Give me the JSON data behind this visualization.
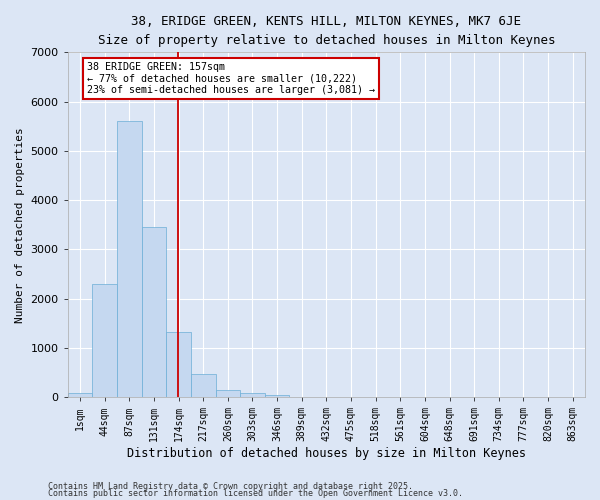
{
  "title_line1": "38, ERIDGE GREEN, KENTS HILL, MILTON KEYNES, MK7 6JE",
  "title_line2": "Size of property relative to detached houses in Milton Keynes",
  "xlabel": "Distribution of detached houses by size in Milton Keynes",
  "ylabel": "Number of detached properties",
  "bar_labels": [
    "1sqm",
    "44sqm",
    "87sqm",
    "131sqm",
    "174sqm",
    "217sqm",
    "260sqm",
    "303sqm",
    "346sqm",
    "389sqm",
    "432sqm",
    "475sqm",
    "518sqm",
    "561sqm",
    "604sqm",
    "648sqm",
    "691sqm",
    "734sqm",
    "777sqm",
    "820sqm",
    "863sqm"
  ],
  "bar_values": [
    75,
    2300,
    5600,
    3450,
    1320,
    470,
    155,
    75,
    50,
    0,
    0,
    0,
    0,
    0,
    0,
    0,
    0,
    0,
    0,
    0,
    0
  ],
  "bar_color": "#c5d8f0",
  "bar_edgecolor": "#6baed6",
  "vline_x": 3.97,
  "vline_color": "#cc0000",
  "annotation_text": "38 ERIDGE GREEN: 157sqm\n← 77% of detached houses are smaller (10,222)\n23% of semi-detached houses are larger (3,081) →",
  "annotation_box_color": "#cc0000",
  "annotation_facecolor": "white",
  "ylim": [
    0,
    7000
  ],
  "background_color": "#dce6f5",
  "grid_color": "white",
  "footer_line1": "Contains HM Land Registry data © Crown copyright and database right 2025.",
  "footer_line2": "Contains public sector information licensed under the Open Government Licence v3.0."
}
